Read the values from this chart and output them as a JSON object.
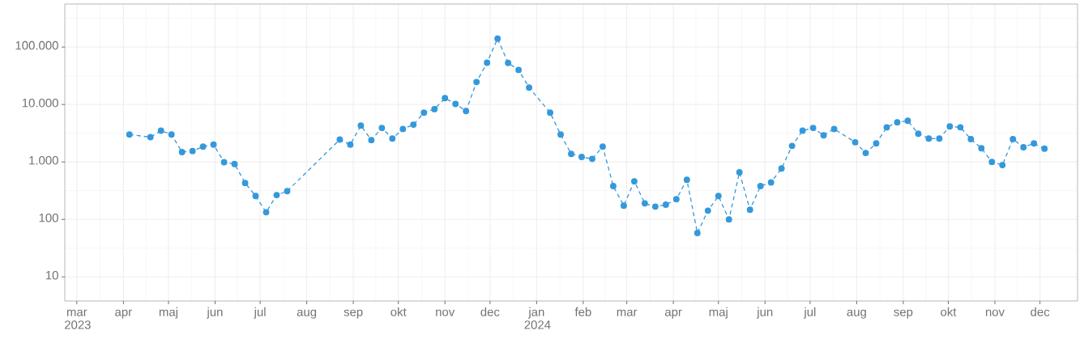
{
  "chart_data": {
    "type": "line",
    "log": "y",
    "grid": true,
    "marker": "circle",
    "line_style": "dashed",
    "x": [
      "2023-04-05",
      "2023-04-19",
      "2023-04-26",
      "2023-05-03",
      "2023-05-10",
      "2023-05-17",
      "2023-05-24",
      "2023-05-31",
      "2023-06-07",
      "2023-06-14",
      "2023-06-21",
      "2023-06-28",
      "2023-07-05",
      "2023-07-12",
      "2023-07-19",
      "2023-08-23",
      "2023-08-30",
      "2023-09-06",
      "2023-09-13",
      "2023-09-20",
      "2023-09-27",
      "2023-10-04",
      "2023-10-11",
      "2023-10-18",
      "2023-10-25",
      "2023-11-01",
      "2023-11-08",
      "2023-11-15",
      "2023-11-22",
      "2023-11-29",
      "2023-12-06",
      "2023-12-13",
      "2023-12-20",
      "2023-12-27",
      "2024-01-10",
      "2024-01-17",
      "2024-01-24",
      "2024-01-31",
      "2024-02-07",
      "2024-02-14",
      "2024-02-21",
      "2024-02-28",
      "2024-03-06",
      "2024-03-13",
      "2024-03-20",
      "2024-03-27",
      "2024-04-03",
      "2024-04-10",
      "2024-04-17",
      "2024-04-24",
      "2024-05-01",
      "2024-05-08",
      "2024-05-15",
      "2024-05-22",
      "2024-05-29",
      "2024-06-05",
      "2024-06-12",
      "2024-06-19",
      "2024-06-26",
      "2024-07-03",
      "2024-07-10",
      "2024-07-17",
      "2024-07-31",
      "2024-08-07",
      "2024-08-14",
      "2024-08-21",
      "2024-08-28",
      "2024-09-04",
      "2024-09-11",
      "2024-09-18",
      "2024-09-25",
      "2024-10-02",
      "2024-10-09",
      "2024-10-16",
      "2024-10-23",
      "2024-10-30",
      "2024-11-06",
      "2024-11-13",
      "2024-11-20",
      "2024-11-27",
      "2024-12-04"
    ],
    "series": [
      {
        "color": "#3498db",
        "values": [
          3000,
          2700,
          3500,
          3000,
          1480,
          1550,
          1850,
          2000,
          990,
          920,
          430,
          255,
          133,
          265,
          310,
          2450,
          2000,
          4300,
          2400,
          3900,
          2550,
          3750,
          4450,
          7200,
          8300,
          12900,
          10200,
          7700,
          24600,
          53300,
          140000,
          53000,
          40000,
          19700,
          7200,
          3000,
          1380,
          1220,
          1130,
          1850,
          380,
          173,
          460,
          190,
          167,
          180,
          225,
          490,
          58,
          142,
          255,
          100,
          660,
          147,
          380,
          440,
          770,
          1900,
          3500,
          3900,
          2900,
          3750,
          2200,
          1430,
          2100,
          4000,
          4900,
          5200,
          3100,
          2550,
          2550,
          4150,
          4000,
          2500,
          1730,
          1000,
          880,
          2500,
          1800,
          2100,
          1700
        ]
      }
    ],
    "xlim": [
      "2023-02-21",
      "2024-12-26"
    ],
    "xticks": [
      {
        "value": "2023-03-01",
        "label": "mar 2023"
      },
      {
        "value": "2023-04-01",
        "label": "apr"
      },
      {
        "value": "2023-05-01",
        "label": "maj"
      },
      {
        "value": "2023-06-01",
        "label": "jun"
      },
      {
        "value": "2023-07-01",
        "label": "jul"
      },
      {
        "value": "2023-08-01",
        "label": "aug"
      },
      {
        "value": "2023-09-01",
        "label": "sep"
      },
      {
        "value": "2023-10-01",
        "label": "okt"
      },
      {
        "value": "2023-11-01",
        "label": "nov"
      },
      {
        "value": "2023-12-01",
        "label": "dec"
      },
      {
        "value": "2024-01-01",
        "label": "jan 2024"
      },
      {
        "value": "2024-02-01",
        "label": "feb"
      },
      {
        "value": "2024-03-01",
        "label": "mar"
      },
      {
        "value": "2024-04-01",
        "label": "apr"
      },
      {
        "value": "2024-05-01",
        "label": "maj"
      },
      {
        "value": "2024-06-01",
        "label": "jun"
      },
      {
        "value": "2024-07-01",
        "label": "jul"
      },
      {
        "value": "2024-08-01",
        "label": "aug"
      },
      {
        "value": "2024-09-01",
        "label": "sep"
      },
      {
        "value": "2024-10-01",
        "label": "okt"
      },
      {
        "value": "2024-11-01",
        "label": "nov"
      },
      {
        "value": "2024-12-01",
        "label": "dec"
      }
    ],
    "ylim": [
      3.8,
      560000
    ],
    "yticks": [
      10,
      100,
      {
        "value": 1000,
        "label": "1.000"
      },
      {
        "value": 10000,
        "label": "10.000"
      },
      {
        "value": 100000,
        "label": "100.000"
      }
    ]
  }
}
